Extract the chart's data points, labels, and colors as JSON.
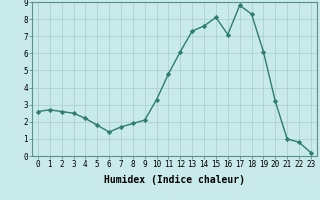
{
  "x": [
    0,
    1,
    2,
    3,
    4,
    5,
    6,
    7,
    8,
    9,
    10,
    11,
    12,
    13,
    14,
    15,
    16,
    17,
    18,
    19,
    20,
    21,
    22,
    23
  ],
  "y": [
    2.6,
    2.7,
    2.6,
    2.5,
    2.2,
    1.8,
    1.4,
    1.7,
    1.9,
    2.1,
    3.3,
    4.8,
    6.1,
    7.3,
    7.6,
    8.1,
    7.1,
    8.8,
    8.3,
    6.1,
    3.2,
    1.0,
    0.8,
    0.2
  ],
  "line_color": "#2e7d6e",
  "marker": "D",
  "marker_size": 2.2,
  "bg_color": "#c8eaea",
  "grid_color": "#b0d0d0",
  "xlabel": "Humidex (Indice chaleur)",
  "xlim": [
    -0.5,
    23.5
  ],
  "ylim": [
    0,
    9
  ],
  "yticks": [
    0,
    1,
    2,
    3,
    4,
    5,
    6,
    7,
    8,
    9
  ],
  "xticks": [
    0,
    1,
    2,
    3,
    4,
    5,
    6,
    7,
    8,
    9,
    10,
    11,
    12,
    13,
    14,
    15,
    16,
    17,
    18,
    19,
    20,
    21,
    22,
    23
  ],
  "tick_fontsize": 5.5,
  "xlabel_fontsize": 7.0,
  "linewidth": 1.0
}
